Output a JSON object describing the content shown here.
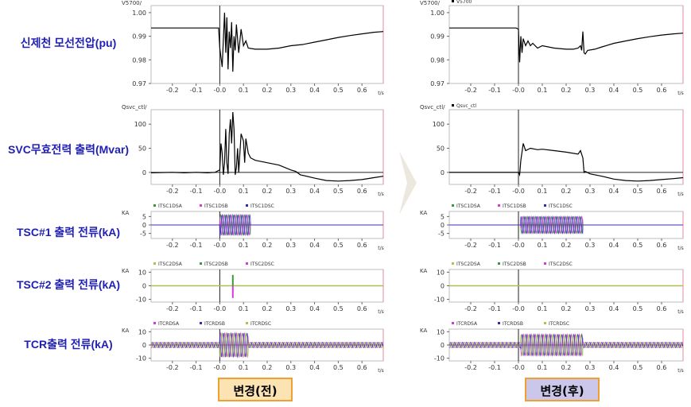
{
  "row_labels": [
    "신제천 모선전압(pu)",
    "SVC무효전력 출력(Mvar)",
    "TSC#1 출력 전류(kA)",
    "TSC#2 출력 전류(kA)",
    "TCR출력 전류(kA)"
  ],
  "captions": {
    "before": "변경(전)",
    "after": "변경(후)"
  },
  "colors": {
    "caption_text": "#1f1fb4",
    "before_fill": "#fbe3b4",
    "after_fill": "#cbc7ea",
    "caption_border": "#f0a030"
  },
  "chart_data": [
    {
      "id": "voltage_before",
      "type": "line",
      "panel": "before",
      "row": 0,
      "ylabel": "V5700/",
      "legend": [],
      "yticks": [
        1.0,
        0.99,
        0.98,
        0.97
      ],
      "ylim": [
        0.97,
        1.003
      ],
      "xticks": [
        "-0.2",
        "-0.1",
        "-0.0",
        "0.1",
        "0.2",
        "0.3",
        "0.4",
        "0.5",
        "0.6"
      ],
      "xunit": "t/s",
      "xlim": [
        -0.29,
        0.69
      ],
      "series": [
        {
          "color": "#000000",
          "x": [
            -0.29,
            -0.02,
            -0.005,
            0.0,
            0.01,
            0.02,
            0.025,
            0.03,
            0.035,
            0.04,
            0.045,
            0.05,
            0.055,
            0.06,
            0.065,
            0.07,
            0.08,
            0.09,
            0.1,
            0.11,
            0.12,
            0.15,
            0.2,
            0.25,
            0.3,
            0.35,
            0.4,
            0.45,
            0.5,
            0.55,
            0.6,
            0.65,
            0.69
          ],
          "y": [
            0.9935,
            0.9935,
            0.9935,
            0.985,
            0.977,
            1.0,
            0.983,
            0.998,
            0.976,
            0.992,
            0.985,
            0.996,
            0.975,
            0.99,
            0.984,
            0.995,
            0.983,
            0.993,
            0.986,
            0.988,
            0.985,
            0.9845,
            0.9845,
            0.985,
            0.986,
            0.9865,
            0.9875,
            0.9885,
            0.9895,
            0.9903,
            0.991,
            0.9917,
            0.992
          ]
        }
      ]
    },
    {
      "id": "svc_before",
      "type": "line",
      "panel": "before",
      "row": 1,
      "ylabel": "Qsvc_ctl/",
      "legend": [],
      "yticks": [
        100,
        50,
        0
      ],
      "ylim": [
        -25,
        130
      ],
      "xticks": [
        "-0.2",
        "-0.1",
        "-0.0",
        "0.1",
        "0.2",
        "0.3",
        "0.4",
        "0.5",
        "0.6"
      ],
      "xunit": "t/s",
      "xlim": [
        -0.29,
        0.69
      ],
      "series": [
        {
          "color": "#000000",
          "x": [
            -0.29,
            -0.2,
            -0.15,
            -0.1,
            -0.05,
            -0.02,
            0.0,
            0.005,
            0.01,
            0.015,
            0.02,
            0.025,
            0.03,
            0.035,
            0.04,
            0.045,
            0.05,
            0.055,
            0.06,
            0.065,
            0.07,
            0.075,
            0.08,
            0.09,
            0.1,
            0.105,
            0.11,
            0.12,
            0.13,
            0.15,
            0.2,
            0.25,
            0.3,
            0.32,
            0.34,
            0.4,
            0.45,
            0.5,
            0.55,
            0.6,
            0.65,
            0.69
          ],
          "y": [
            -1,
            0,
            -1,
            0,
            -1,
            0,
            5,
            60,
            40,
            -5,
            20,
            90,
            20,
            -3,
            80,
            110,
            60,
            125,
            90,
            -5,
            10,
            50,
            0,
            80,
            65,
            20,
            70,
            40,
            30,
            25,
            20,
            15,
            5,
            2,
            -5,
            -12,
            -17,
            -18,
            -17,
            -15,
            -11,
            -8
          ]
        }
      ]
    },
    {
      "id": "tsc1_before",
      "type": "line",
      "panel": "before",
      "row": 2,
      "ylabel": "KA",
      "legend": [
        {
          "name": "ITSC1DSA",
          "color": "#3a9a3a"
        },
        {
          "name": "ITSC1DSB",
          "color": "#d63ad6"
        },
        {
          "name": "ITSC1DSC",
          "color": "#2b2bb8"
        }
      ],
      "yticks": [
        5,
        0,
        -5
      ],
      "ylim": [
        -8,
        8
      ],
      "xlim": [
        -0.29,
        0.69
      ],
      "xticks": [
        "-0.2",
        "-0.1",
        "-0.0",
        "0.1",
        "0.2",
        "0.3",
        "0.4",
        "0.5",
        "0.6"
      ],
      "xunit": "t/s",
      "oscillation": {
        "start": 0.0,
        "end": 0.13,
        "amplitude": 6,
        "period": 0.0167
      }
    },
    {
      "id": "tsc2_before",
      "type": "line",
      "panel": "before",
      "row": 3,
      "ylabel": "KA",
      "legend": [
        {
          "name": "ITSC2DSA",
          "color": "#a8c44a"
        },
        {
          "name": "ITSC2DSB",
          "color": "#3a9a3a"
        },
        {
          "name": "ITSC2DSC",
          "color": "#d63ad6"
        }
      ],
      "yticks": [
        10,
        0,
        -10
      ],
      "ylim": [
        -12,
        12
      ],
      "xlim": [
        -0.29,
        0.69
      ],
      "xticks": [
        "-0.2",
        "-0.1",
        "-0.0",
        "0.1",
        "0.2",
        "0.3",
        "0.4",
        "0.5",
        "0.6"
      ],
      "xunit": "t/s",
      "spike": {
        "x": 0.055,
        "min": -9,
        "max": 8
      }
    },
    {
      "id": "tcr_before",
      "type": "line",
      "panel": "before",
      "row": 4,
      "ylabel": "KA",
      "legend": [
        {
          "name": "ITCRDSA",
          "color": "#d63ad6"
        },
        {
          "name": "ITCRDSB",
          "color": "#2b2bb8"
        },
        {
          "name": "ITCRDSC",
          "color": "#a8c44a"
        }
      ],
      "yticks": [
        10,
        0,
        -10
      ],
      "ylim": [
        -12,
        12
      ],
      "xlim": [
        -0.29,
        0.69
      ],
      "xticks": [
        "-0.2",
        "-0.1",
        "-0.0",
        "0.1",
        "0.2",
        "0.3",
        "0.4",
        "0.5",
        "0.6"
      ],
      "xunit": "t/s",
      "base_amplitude": 2,
      "oscillation": {
        "start": 0.0,
        "end": 0.12,
        "amplitude": 9,
        "period": 0.0167
      }
    },
    {
      "id": "voltage_after",
      "type": "line",
      "panel": "after",
      "row": 0,
      "ylabel": "V5700/",
      "legend": [
        {
          "name": "V5700",
          "color": "#000000"
        }
      ],
      "yticks": [
        1.0,
        0.99,
        0.98,
        0.97
      ],
      "ylim": [
        0.97,
        1.003
      ],
      "xticks": [
        "-0.2",
        "-0.1",
        "-0.0",
        "0.1",
        "0.2",
        "0.3",
        "0.4",
        "0.5",
        "0.6"
      ],
      "xunit": "t/s",
      "xlim": [
        -0.29,
        0.69
      ],
      "series": [
        {
          "color": "#000000",
          "x": [
            -0.29,
            -0.01,
            0.0,
            0.005,
            0.01,
            0.015,
            0.02,
            0.03,
            0.04,
            0.05,
            0.06,
            0.08,
            0.1,
            0.15,
            0.2,
            0.23,
            0.25,
            0.26,
            0.265,
            0.27,
            0.275,
            0.28,
            0.29,
            0.32,
            0.35,
            0.4,
            0.45,
            0.5,
            0.55,
            0.6,
            0.65,
            0.69
          ],
          "y": [
            0.9935,
            0.9935,
            0.993,
            0.979,
            0.99,
            0.983,
            0.989,
            0.986,
            0.988,
            0.986,
            0.987,
            0.985,
            0.986,
            0.985,
            0.9845,
            0.9845,
            0.985,
            0.986,
            0.984,
            0.992,
            0.983,
            0.9825,
            0.984,
            0.9845,
            0.9855,
            0.987,
            0.988,
            0.989,
            0.9898,
            0.9905,
            0.991,
            0.9913
          ]
        }
      ]
    },
    {
      "id": "svc_after",
      "type": "line",
      "panel": "after",
      "row": 1,
      "ylabel": "Qsvc_ctl/",
      "legend": [
        {
          "name": "Qsvc_ctl",
          "color": "#000000"
        }
      ],
      "yticks": [
        100,
        50,
        0
      ],
      "ylim": [
        -25,
        130
      ],
      "xticks": [
        "-0.2",
        "-0.1",
        "-0.0",
        "0.1",
        "0.2",
        "0.3",
        "0.4",
        "0.5",
        "0.6"
      ],
      "xunit": "t/s",
      "xlim": [
        -0.29,
        0.69
      ],
      "series": [
        {
          "color": "#000000",
          "x": [
            -0.29,
            -0.01,
            0.0,
            0.005,
            0.01,
            0.02,
            0.03,
            0.05,
            0.08,
            0.1,
            0.15,
            0.2,
            0.25,
            0.26,
            0.27,
            0.275,
            0.28,
            0.3,
            0.35,
            0.4,
            0.45,
            0.5,
            0.55,
            0.6,
            0.65,
            0.69
          ],
          "y": [
            0,
            0,
            0,
            -5,
            25,
            60,
            45,
            50,
            47,
            48,
            45,
            42,
            38,
            45,
            30,
            0,
            2,
            -3,
            -8,
            -14,
            -17,
            -18,
            -17,
            -15,
            -13,
            -11
          ]
        }
      ]
    },
    {
      "id": "tsc1_after",
      "type": "line",
      "panel": "after",
      "row": 2,
      "ylabel": "KA",
      "legend": [
        {
          "name": "ITSC1DSA",
          "color": "#3a9a3a"
        },
        {
          "name": "ITSC1DSB",
          "color": "#d63ad6"
        },
        {
          "name": "ITSC1DSC",
          "color": "#2b2bb8"
        }
      ],
      "yticks": [
        5,
        0,
        -5
      ],
      "ylim": [
        -8,
        8
      ],
      "xlim": [
        -0.29,
        0.69
      ],
      "xticks": [
        "-0.2",
        "-0.1",
        "-0.0",
        "0.1",
        "0.2",
        "0.3",
        "0.4",
        "0.5",
        "0.6"
      ],
      "xunit": "t/s",
      "oscillation": {
        "start": 0.01,
        "end": 0.27,
        "amplitude": 5,
        "period": 0.0167
      }
    },
    {
      "id": "tsc2_after",
      "type": "line",
      "panel": "after",
      "row": 3,
      "ylabel": "KA",
      "legend": [
        {
          "name": "ITSC2DSA",
          "color": "#a8c44a"
        },
        {
          "name": "ITSC2DSB",
          "color": "#3a9a3a"
        },
        {
          "name": "ITSC2DSC",
          "color": "#d63ad6"
        }
      ],
      "yticks": [
        10,
        0,
        -10
      ],
      "ylim": [
        -12,
        12
      ],
      "xlim": [
        -0.29,
        0.69
      ],
      "xticks": [
        "-0.2",
        "-0.1",
        "-0.0",
        "0.1",
        "0.2",
        "0.3",
        "0.4",
        "0.5",
        "0.6"
      ],
      "xunit": "t/s"
    },
    {
      "id": "tcr_after",
      "type": "line",
      "panel": "after",
      "row": 4,
      "ylabel": "KA",
      "legend": [
        {
          "name": "ITCRDSA",
          "color": "#d63ad6"
        },
        {
          "name": "ITCRDSB",
          "color": "#2b2bb8"
        },
        {
          "name": "ITCRDSC",
          "color": "#a8c44a"
        }
      ],
      "yticks": [
        10,
        0,
        -10
      ],
      "ylim": [
        -12,
        12
      ],
      "xlim": [
        -0.29,
        0.69
      ],
      "xticks": [
        "-0.2",
        "-0.1",
        "-0.0",
        "0.1",
        "0.2",
        "0.3",
        "0.4",
        "0.5",
        "0.6"
      ],
      "xunit": "t/s",
      "base_amplitude": 2,
      "oscillation": {
        "start": 0.01,
        "end": 0.27,
        "amplitude": 8,
        "period": 0.0167
      }
    }
  ]
}
